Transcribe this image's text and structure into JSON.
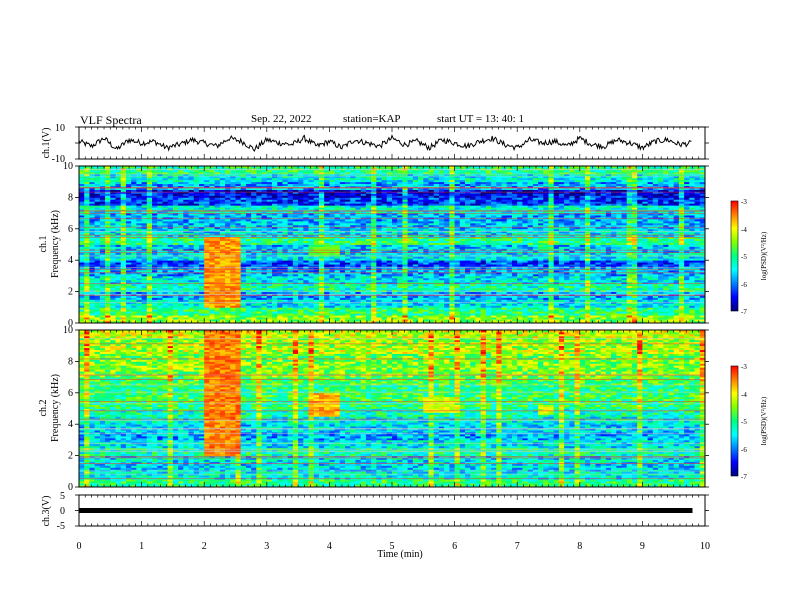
{
  "header": {
    "title": "VLF Spectra",
    "date": "Sep. 22, 2022",
    "station": "station=KAP",
    "start_ut": "start  UT =   13: 40: 1"
  },
  "colors": {
    "colormap": [
      "#00007f",
      "#0000ff",
      "#0080ff",
      "#00ffff",
      "#00ff80",
      "#80ff00",
      "#ffff00",
      "#ff8000",
      "#ff0000",
      "#ff80ff",
      "#ffffff"
    ]
  },
  "chart_data": [
    {
      "id": "ch1-waveform",
      "type": "line",
      "ylabel": "ch.1(V)",
      "ylim": [
        -10,
        10
      ],
      "yticks": [
        "10",
        "-10"
      ],
      "xlim": [
        0,
        10
      ],
      "series": [
        {
          "x": [
            0,
            0.2,
            0.4,
            0.6,
            0.8,
            1.0,
            1.2,
            1.4,
            1.6,
            1.8,
            2.0,
            2.2,
            2.4,
            2.6,
            2.8,
            3.0,
            3.2,
            3.4,
            3.6,
            3.8,
            4.0,
            4.2,
            4.4,
            4.6,
            4.8,
            5.0,
            5.2,
            5.4,
            5.6,
            5.8,
            6.0,
            6.2,
            6.4,
            6.6,
            6.8,
            7.0,
            7.2,
            7.4,
            7.6,
            7.8,
            8.0,
            8.2,
            8.4,
            8.6,
            8.8,
            9.0,
            9.2,
            9.4,
            9.6,
            9.8
          ],
          "values": [
            1,
            -2,
            3,
            -4,
            2,
            0,
            1,
            -3,
            -1,
            2,
            0,
            -2,
            3,
            1,
            -4,
            2,
            0,
            -1,
            3,
            -2,
            1,
            -3,
            2,
            0,
            -2,
            3,
            -1,
            1,
            -3,
            2,
            0,
            -2,
            1,
            3,
            -1,
            -3,
            2,
            0,
            1,
            -2,
            3,
            -1,
            -2,
            2,
            0,
            -3,
            1,
            2,
            -1,
            0
          ]
        }
      ]
    },
    {
      "id": "ch1-spectrogram",
      "type": "heatmap",
      "ylabel": "ch.1\nFrequency  (kHz)",
      "ylim": [
        0,
        10
      ],
      "yticks": [
        "0",
        "2",
        "4",
        "6",
        "8",
        "10"
      ],
      "xlim": [
        0,
        10
      ],
      "colorbar_label": "log(PSD)(V²/Hz)",
      "colorbar_ticks": [
        "-3",
        "-4",
        "-5",
        "-6",
        "-7"
      ],
      "clim": [
        -7,
        -3
      ],
      "freq_bands_khz": [
        0,
        0.5,
        1,
        1.5,
        2,
        2.5,
        3,
        3.5,
        4,
        4.5,
        5,
        5.5,
        6,
        6.5,
        7,
        7.5,
        8,
        8.5,
        9,
        9.5,
        10
      ],
      "band_log_psd": [
        -4.5,
        -5.0,
        -5.5,
        -5.8,
        -5.2,
        -5.5,
        -5.8,
        -6.2,
        -5.5,
        -5.7,
        -5.0,
        -5.5,
        -5.7,
        -5.8,
        -5.4,
        -6.3,
        -6.6,
        -5.8,
        -5.4,
        -5.0
      ],
      "events": [
        {
          "t_min": 2.0,
          "t_max": 2.6,
          "f_min": 1.0,
          "f_max": 5.5,
          "log_psd": -3.6
        },
        {
          "t_min": 3.7,
          "t_max": 4.2,
          "f_min": 4.2,
          "f_max": 5.0,
          "log_psd": -4.7
        },
        {
          "t_min": 7.3,
          "t_max": 7.6,
          "f_min": 4.6,
          "f_max": 5.0,
          "log_psd": -4.9
        }
      ]
    },
    {
      "id": "ch2-spectrogram",
      "type": "heatmap",
      "ylabel": "ch.2\nFrequency  (kHz)",
      "ylim": [
        0,
        10
      ],
      "yticks": [
        "0",
        "2",
        "4",
        "6",
        "8",
        "10"
      ],
      "xlim": [
        0,
        10
      ],
      "colorbar_label": "log(PSD)(V²/Hz)",
      "colorbar_ticks": [
        "-3",
        "-4",
        "-5",
        "-6",
        "-7"
      ],
      "clim": [
        -7,
        -3
      ],
      "freq_bands_khz": [
        0,
        0.5,
        1,
        1.5,
        2,
        2.5,
        3,
        3.5,
        4,
        4.5,
        5,
        5.5,
        6,
        6.5,
        7,
        7.5,
        8,
        8.5,
        9,
        9.5,
        10
      ],
      "band_log_psd": [
        -5.0,
        -5.4,
        -5.6,
        -5.5,
        -5.2,
        -5.5,
        -5.8,
        -5.6,
        -5.4,
        -5.2,
        -5.0,
        -4.9,
        -5.0,
        -4.8,
        -4.6,
        -4.5,
        -4.6,
        -4.3,
        -4.4,
        -4.2
      ],
      "events": [
        {
          "t_min": 2.0,
          "t_max": 2.6,
          "f_min": 2.0,
          "f_max": 10.0,
          "log_psd": -3.5
        },
        {
          "t_min": 3.7,
          "t_max": 4.2,
          "f_min": 4.5,
          "f_max": 6.0,
          "log_psd": -3.7
        },
        {
          "t_min": 5.5,
          "t_max": 6.0,
          "f_min": 4.8,
          "f_max": 5.8,
          "log_psd": -4.1
        },
        {
          "t_min": 7.3,
          "t_max": 7.6,
          "f_min": 4.6,
          "f_max": 5.2,
          "log_psd": -4.2
        }
      ]
    },
    {
      "id": "ch3-waveform",
      "type": "line",
      "ylabel": "ch.3(V)",
      "xlabel": "Time  (min)",
      "ylim": [
        -5,
        5
      ],
      "yticks": [
        "5",
        "0",
        "-5"
      ],
      "xlim": [
        0,
        10
      ],
      "xticks": [
        "0",
        "1",
        "2",
        "3",
        "4",
        "5",
        "6",
        "7",
        "8",
        "9",
        "10"
      ],
      "series": [
        {
          "x": [
            0,
            9.8
          ],
          "values": [
            0,
            0
          ]
        }
      ]
    }
  ]
}
